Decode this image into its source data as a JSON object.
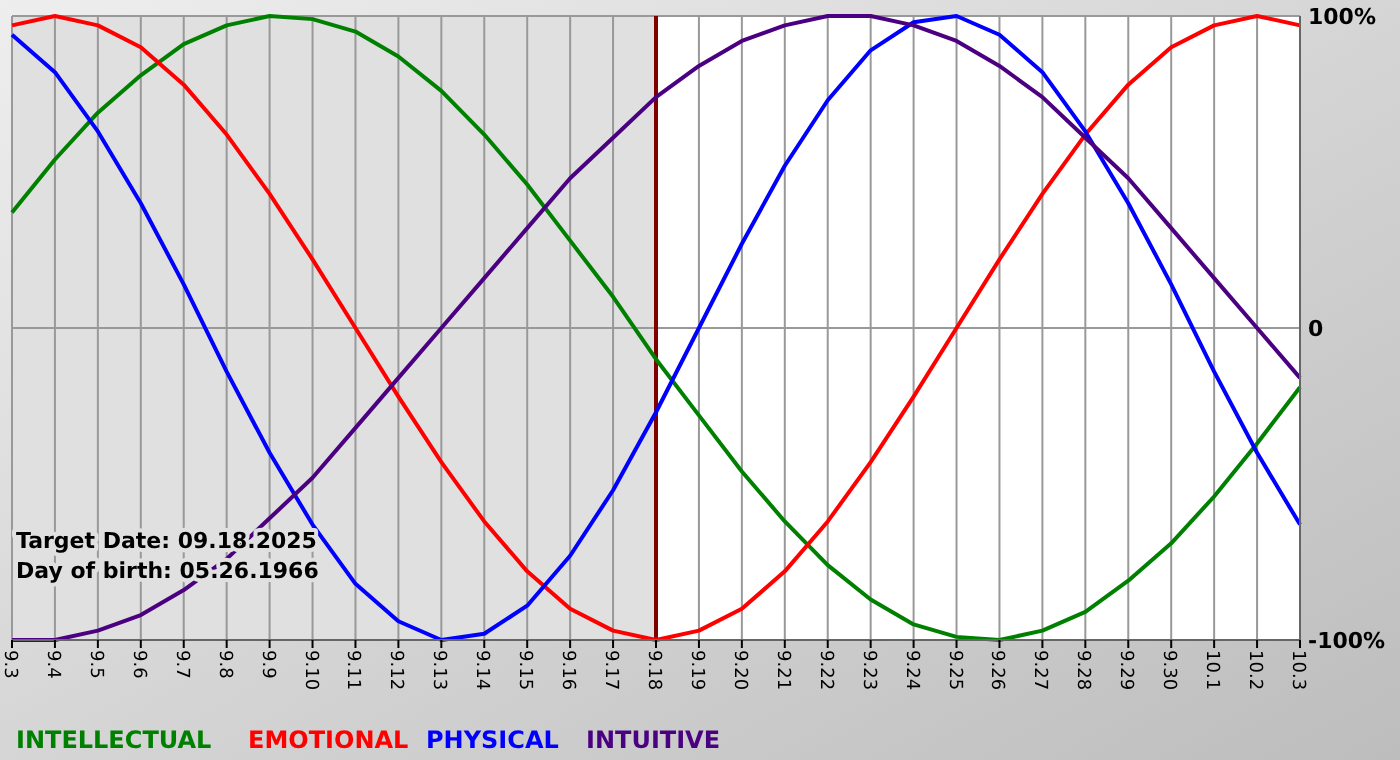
{
  "chart_data": {
    "type": "line",
    "categories": [
      "9.3",
      "9.4",
      "9.5",
      "9.6",
      "9.7",
      "9.8",
      "9.9",
      "9.10",
      "9.11",
      "9.12",
      "9.13",
      "9.14",
      "9.15",
      "9.16",
      "9.17",
      "9.18",
      "9.19",
      "9.20",
      "9.21",
      "9.22",
      "9.23",
      "9.24",
      "9.25",
      "9.26",
      "9.27",
      "9.28",
      "9.29",
      "9.30",
      "10.1",
      "10.2",
      "10.3"
    ],
    "series": [
      {
        "name": "INTELLECTUAL",
        "color": "#008000",
        "values": [
          37,
          54,
          69,
          81,
          91,
          97,
          100,
          99,
          95,
          87,
          76,
          62,
          46,
          28,
          10,
          -10,
          -28,
          -46,
          -62,
          -76,
          -87,
          -95,
          -99,
          -100,
          -97,
          -91,
          -81,
          -69,
          -54,
          -37,
          -19
        ]
      },
      {
        "name": "EMOTIONAL",
        "color": "#ff0000",
        "values": [
          97,
          100,
          97,
          90,
          78,
          62,
          43,
          22,
          0,
          -22,
          -43,
          -62,
          -78,
          -90,
          -97,
          -100,
          -97,
          -90,
          -78,
          -62,
          -43,
          -22,
          0,
          22,
          43,
          62,
          78,
          90,
          97,
          100,
          97
        ]
      },
      {
        "name": "PHYSICAL",
        "color": "#0000ff",
        "values": [
          94,
          82,
          63,
          40,
          14,
          -14,
          -40,
          -63,
          -82,
          -94,
          -100,
          -98,
          -89,
          -73,
          -52,
          -27,
          0,
          27,
          52,
          73,
          89,
          98,
          100,
          94,
          82,
          63,
          40,
          14,
          -14,
          -40,
          -63
        ]
      },
      {
        "name": "INTUITIVE",
        "color": "#4b0082",
        "values": [
          -100,
          -100,
          -97,
          -92,
          -84,
          -74,
          -61,
          -48,
          -32,
          -16,
          0,
          16,
          32,
          48,
          61,
          74,
          84,
          92,
          97,
          100,
          100,
          97,
          92,
          84,
          74,
          61,
          48,
          32,
          16,
          0,
          -16
        ]
      }
    ],
    "ylim": [
      -100,
      100
    ],
    "yticks": [
      {
        "value": -100,
        "label": "-100%"
      },
      0,
      {
        "value": 100,
        "label": "100%"
      }
    ],
    "grid": true,
    "legend": "bottom",
    "marker": "none",
    "line_style": "solid",
    "ref_lines": [
      {
        "axis": "x",
        "value": "9.18",
        "color": "#800000"
      }
    ],
    "bands": [
      {
        "axis": "x",
        "from": "9.3",
        "to": "9.18",
        "color": "#e0e0e0"
      }
    ],
    "annotations": [
      "Target Date: 09.18.2025",
      "Day of birth: 05.26.1966"
    ]
  }
}
